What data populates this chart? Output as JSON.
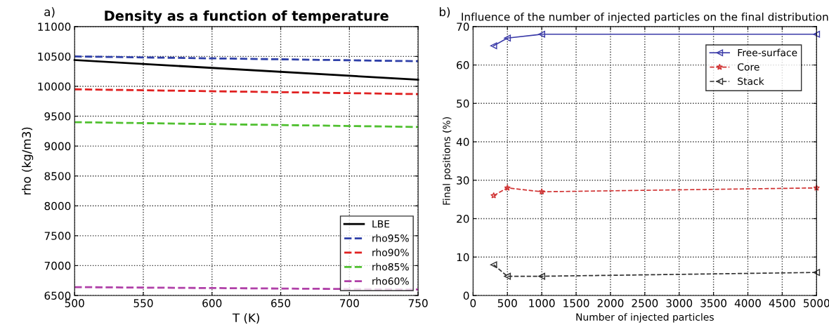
{
  "chart_data": [
    {
      "type": "line",
      "title": "Density as a function of temperature",
      "xlabel": "T (K)",
      "ylabel": "rho (kg/m3)",
      "annotations": [
        "a)"
      ],
      "x": [
        500,
        750
      ],
      "xlim": [
        500,
        750
      ],
      "xticks": [
        500,
        550,
        600,
        650,
        700,
        750
      ],
      "ylim": [
        6500,
        11000
      ],
      "yticks": [
        6500,
        7000,
        7500,
        8000,
        8500,
        9000,
        9500,
        10000,
        10500,
        11000
      ],
      "grid": true,
      "legend": "bottom right",
      "series": [
        {
          "name": "LBE",
          "color": "#000000",
          "values": [
            10440,
            10110
          ],
          "line_style": "solid"
        },
        {
          "name": "rho95%",
          "color": "#2e3fa8",
          "values": [
            10500,
            10420
          ],
          "line_style": "dashed"
        },
        {
          "name": "rho90%",
          "color": "#e02020",
          "values": [
            9950,
            9870
          ],
          "line_style": "dashed"
        },
        {
          "name": "rho85%",
          "color": "#50c030",
          "values": [
            9400,
            9320
          ],
          "line_style": "dashed"
        },
        {
          "name": "rho60%",
          "color": "#b040a8",
          "values": [
            6640,
            6600
          ],
          "line_style": "dashed"
        }
      ]
    },
    {
      "type": "line",
      "title": "Influence of the number of injected particles on the final distribution",
      "xlabel": "Number of injected particles",
      "ylabel": "Final positions (%)",
      "annotations": [
        "b)"
      ],
      "x": [
        300,
        500,
        1000,
        5000
      ],
      "xlim": [
        0,
        5000
      ],
      "xticks": [
        0,
        500,
        1000,
        1500,
        2000,
        2500,
        3000,
        3500,
        4000,
        4500,
        5000
      ],
      "ylim": [
        0,
        70
      ],
      "yticks": [
        0,
        10,
        20,
        30,
        40,
        50,
        60,
        70
      ],
      "grid": true,
      "legend": "top right",
      "series": [
        {
          "name": "Free-surface",
          "color": "#3a3aa8",
          "values": [
            65,
            67,
            68,
            68
          ],
          "line_style": "solid",
          "marker": "triangle"
        },
        {
          "name": "Core",
          "color": "#d03030",
          "values": [
            26,
            28,
            27,
            28
          ],
          "line_style": "dashed",
          "marker": "star"
        },
        {
          "name": "Stack",
          "color": "#303030",
          "values": [
            8,
            5,
            5,
            6
          ],
          "line_style": "dashed",
          "marker": "triangle"
        }
      ]
    }
  ]
}
